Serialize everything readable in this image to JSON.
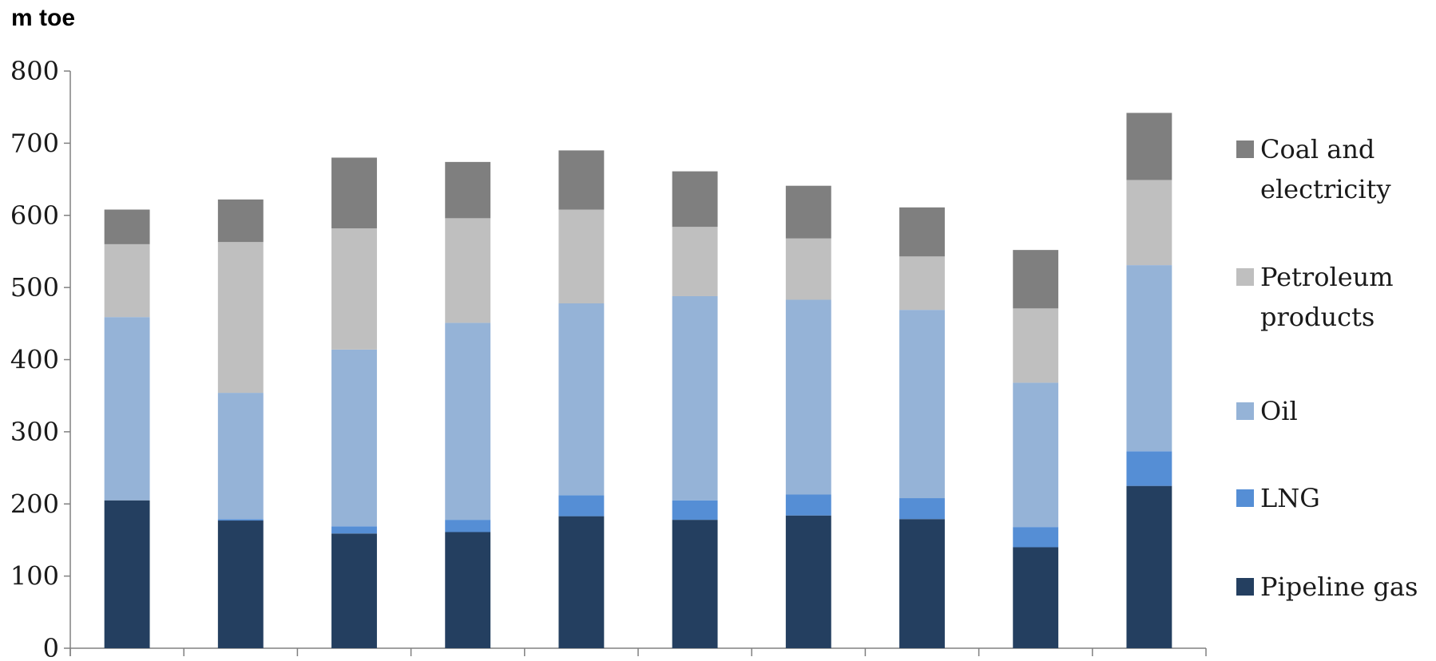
{
  "chart_data": {
    "type": "bar",
    "stacked": true,
    "ylabel": "m toe",
    "ylim": [
      0,
      800
    ],
    "yticks": [
      "0",
      "100",
      "200",
      "300",
      "400",
      "500",
      "600",
      "700",
      "800"
    ],
    "categories": [
      "",
      "",
      "",
      "",
      "",
      "",
      "",
      "",
      "",
      ""
    ],
    "grid": false,
    "legend_position": "right",
    "series": [
      {
        "name": "Pipeline gas",
        "color": "#243f60",
        "values": [
          205,
          177,
          159,
          161,
          183,
          178,
          184,
          179,
          140,
          225
        ]
      },
      {
        "name": "LNG",
        "color": "#558ed5",
        "values": [
          0,
          2,
          10,
          17,
          29,
          27,
          29,
          29,
          28,
          48
        ]
      },
      {
        "name": "Oil",
        "color": "#95b3d7",
        "values": [
          254,
          175,
          245,
          273,
          266,
          283,
          270,
          261,
          200,
          258
        ]
      },
      {
        "name": "Petroleum products",
        "color": "#bfbfbf",
        "values": [
          101,
          209,
          168,
          145,
          130,
          96,
          85,
          74,
          103,
          118
        ]
      },
      {
        "name": "Coal and electricity",
        "color": "#7f7f7f",
        "values": [
          48,
          59,
          98,
          78,
          82,
          77,
          73,
          68,
          81,
          93
        ]
      }
    ],
    "legend": [
      {
        "lines": [
          "Coal and",
          "electricity"
        ]
      },
      {
        "lines": [
          "Petroleum",
          "products"
        ]
      },
      {
        "lines": [
          "Oil"
        ]
      },
      {
        "lines": [
          "LNG"
        ]
      },
      {
        "lines": [
          "Pipeline gas"
        ]
      }
    ]
  }
}
